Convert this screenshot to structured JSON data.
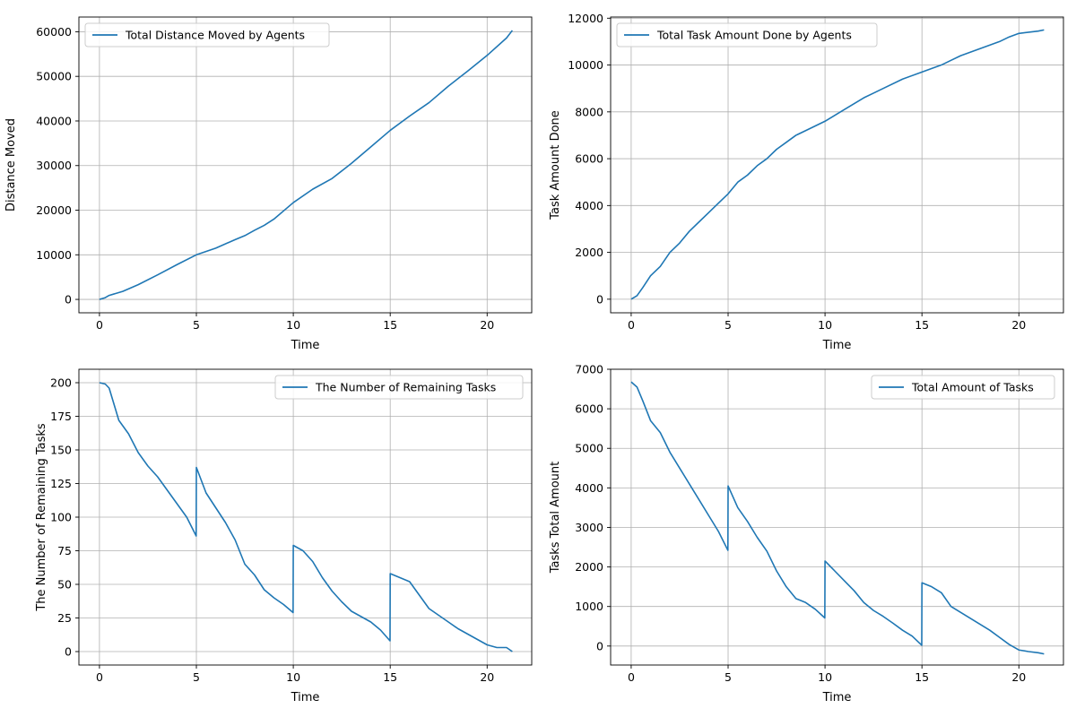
{
  "chart_data": [
    {
      "type": "line",
      "xlabel": "Time",
      "ylabel": "Distance Moved",
      "xlim": [
        -1.06,
        22.3
      ],
      "ylim": [
        -3000,
        63300
      ],
      "xticks": [
        0,
        5,
        10,
        15,
        20
      ],
      "yticks": [
        0,
        10000,
        20000,
        30000,
        40000,
        50000,
        60000
      ],
      "grid": true,
      "legend_position": "upper left",
      "series": [
        {
          "name": "Total Distance Moved by Agents",
          "color": "#1f77b4",
          "x": [
            0,
            0.3,
            0.5,
            1.2,
            2,
            3,
            4,
            5,
            6,
            7,
            7.5,
            8,
            8.5,
            9,
            10,
            11,
            12,
            13,
            14,
            15,
            16,
            17,
            18,
            19,
            20,
            21,
            21.3
          ],
          "y": [
            0,
            400,
            900,
            1800,
            3300,
            5500,
            7800,
            10000,
            11500,
            13400,
            14300,
            15500,
            16600,
            18000,
            21700,
            24700,
            27100,
            30500,
            34200,
            37900,
            41100,
            44100,
            47800,
            51200,
            54700,
            58600,
            60300
          ]
        }
      ]
    },
    {
      "type": "line",
      "xlabel": "Time",
      "ylabel": "Task Amount Done",
      "xlim": [
        -1.06,
        22.3
      ],
      "ylim": [
        -580,
        12050
      ],
      "xticks": [
        0,
        5,
        10,
        15,
        20
      ],
      "yticks": [
        0,
        2000,
        4000,
        6000,
        8000,
        10000,
        12000
      ],
      "grid": true,
      "legend_position": "upper left",
      "series": [
        {
          "name": "Total Task Amount Done by Agents",
          "color": "#1f77b4",
          "x": [
            0,
            0.3,
            0.6,
            1,
            1.5,
            2,
            2.5,
            3,
            3.5,
            4,
            4.5,
            5,
            5.5,
            6,
            6.5,
            7,
            7.5,
            8,
            8.5,
            9,
            9.5,
            10,
            11,
            12,
            12.5,
            13,
            14,
            15,
            16,
            16.5,
            17,
            18,
            19,
            19.5,
            20,
            21,
            21.3
          ],
          "y": [
            0,
            150,
            500,
            1000,
            1400,
            2000,
            2400,
            2900,
            3300,
            3700,
            4100,
            4500,
            5000,
            5300,
            5700,
            6000,
            6400,
            6700,
            7000,
            7200,
            7400,
            7600,
            8100,
            8600,
            8800,
            9000,
            9400,
            9700,
            10000,
            10200,
            10400,
            10700,
            11000,
            11200,
            11350,
            11450,
            11500
          ]
        }
      ]
    },
    {
      "type": "line",
      "xlabel": "Time",
      "ylabel": "The Number of Remaining Tasks",
      "xlim": [
        -1.06,
        22.3
      ],
      "ylim": [
        -10,
        210
      ],
      "xticks": [
        0,
        5,
        10,
        15,
        20
      ],
      "yticks": [
        0,
        25,
        50,
        75,
        100,
        125,
        150,
        175,
        200
      ],
      "grid": true,
      "legend_position": "upper right",
      "series": [
        {
          "name": "The Number of Remaining Tasks",
          "color": "#1f77b4",
          "x": [
            0,
            0.3,
            0.5,
            1,
            1.5,
            2,
            2.5,
            3,
            3.5,
            4,
            4.5,
            4.99,
            5.0,
            5.5,
            6,
            6.5,
            7,
            7.5,
            8,
            8.5,
            9,
            9.5,
            9.99,
            10.0,
            10.5,
            11,
            11.5,
            12,
            12.5,
            13,
            13.5,
            14,
            14.5,
            14.99,
            15.0,
            15.5,
            16,
            16.5,
            17,
            17.5,
            18,
            18.5,
            19,
            19.5,
            20,
            20.5,
            21,
            21.3
          ],
          "y": [
            200,
            199,
            196,
            172,
            162,
            148,
            138,
            130,
            120,
            110,
            100,
            86,
            137,
            118,
            107,
            96,
            83,
            65,
            57,
            46,
            40,
            35,
            29,
            79,
            75,
            67,
            55,
            45,
            37,
            30,
            26,
            22,
            16,
            8,
            58,
            55,
            52,
            42,
            32,
            27,
            22,
            17,
            13,
            9,
            5,
            3,
            3,
            0
          ]
        }
      ]
    },
    {
      "type": "line",
      "xlabel": "Time",
      "ylabel": "Tasks Total Amount",
      "xlim": [
        -1.06,
        22.3
      ],
      "ylim": [
        -480,
        7000
      ],
      "xticks": [
        0,
        5,
        10,
        15,
        20
      ],
      "yticks": [
        0,
        1000,
        2000,
        3000,
        4000,
        5000,
        6000,
        7000
      ],
      "grid": true,
      "legend_position": "upper right",
      "series": [
        {
          "name": "Total Amount of Tasks",
          "color": "#1f77b4",
          "x": [
            0,
            0.3,
            0.6,
            1,
            1.5,
            2,
            2.5,
            3,
            3.5,
            4,
            4.5,
            4.99,
            5.0,
            5.5,
            6,
            6.5,
            7,
            7.5,
            8,
            8.5,
            9,
            9.5,
            9.99,
            10.0,
            10.5,
            11,
            11.5,
            12,
            12.5,
            13,
            13.5,
            14,
            14.5,
            14.99,
            15.0,
            15.5,
            16,
            16.5,
            17,
            17.5,
            18,
            18.5,
            19,
            19.5,
            20,
            20.5,
            21,
            21.3
          ],
          "y": [
            6680,
            6550,
            6200,
            5700,
            5400,
            4900,
            4500,
            4100,
            3700,
            3300,
            2900,
            2420,
            4050,
            3500,
            3150,
            2750,
            2400,
            1900,
            1500,
            1200,
            1100,
            930,
            710,
            2150,
            1900,
            1650,
            1400,
            1100,
            900,
            750,
            580,
            400,
            250,
            20,
            1600,
            1500,
            1350,
            1000,
            850,
            700,
            550,
            400,
            220,
            40,
            -100,
            -140,
            -170,
            -200
          ]
        }
      ]
    }
  ]
}
